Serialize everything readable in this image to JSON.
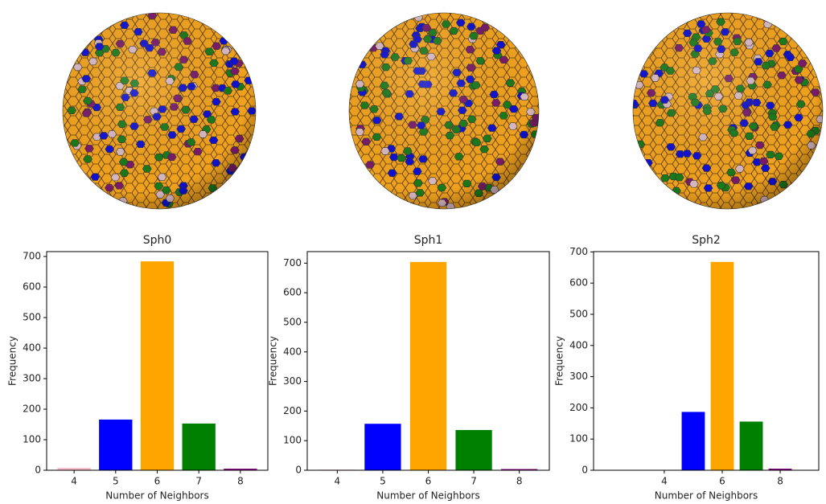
{
  "chart_data": [
    {
      "type": "bar",
      "title": "Sph0",
      "x_label": "Number of Neighbors",
      "y_label": "Frequency",
      "x": [
        4,
        5,
        6,
        7,
        8
      ],
      "values": [
        8,
        166,
        684,
        153,
        5
      ],
      "colors": [
        "pink",
        "blue",
        "orange",
        "green",
        "purple"
      ],
      "xlim": [
        3.34,
        8.66
      ],
      "ylim": [
        0,
        716
      ],
      "xticks": [
        4,
        5,
        6,
        7,
        8
      ],
      "yticks": [
        0,
        100,
        200,
        300,
        400,
        500,
        600,
        700
      ]
    },
    {
      "type": "bar",
      "title": "Sph1",
      "x_label": "Number of Neighbors",
      "y_label": "Frequency",
      "x": [
        4,
        5,
        6,
        7,
        8
      ],
      "values": [
        2,
        157,
        704,
        136,
        4
      ],
      "colors": [
        "pink",
        "blue",
        "orange",
        "green",
        "purple"
      ],
      "xlim": [
        3.34,
        8.66
      ],
      "ylim": [
        0,
        739
      ],
      "xticks": [
        4,
        5,
        6,
        7,
        8
      ],
      "yticks": [
        0,
        100,
        200,
        300,
        400,
        500,
        600,
        700
      ]
    },
    {
      "type": "bar",
      "title": "Sph2",
      "x_label": "Number of Neighbors",
      "y_label": "Frequency",
      "x": [
        5,
        6,
        7,
        8
      ],
      "values": [
        187,
        668,
        156,
        5
      ],
      "colors": [
        "blue",
        "orange",
        "green",
        "purple"
      ],
      "xlim": [
        1.56,
        9.33
      ],
      "ylim": [
        0,
        701
      ],
      "xticks": [
        4,
        6,
        8
      ],
      "yticks": [
        0,
        100,
        200,
        300,
        400,
        500,
        600,
        700
      ]
    }
  ]
}
